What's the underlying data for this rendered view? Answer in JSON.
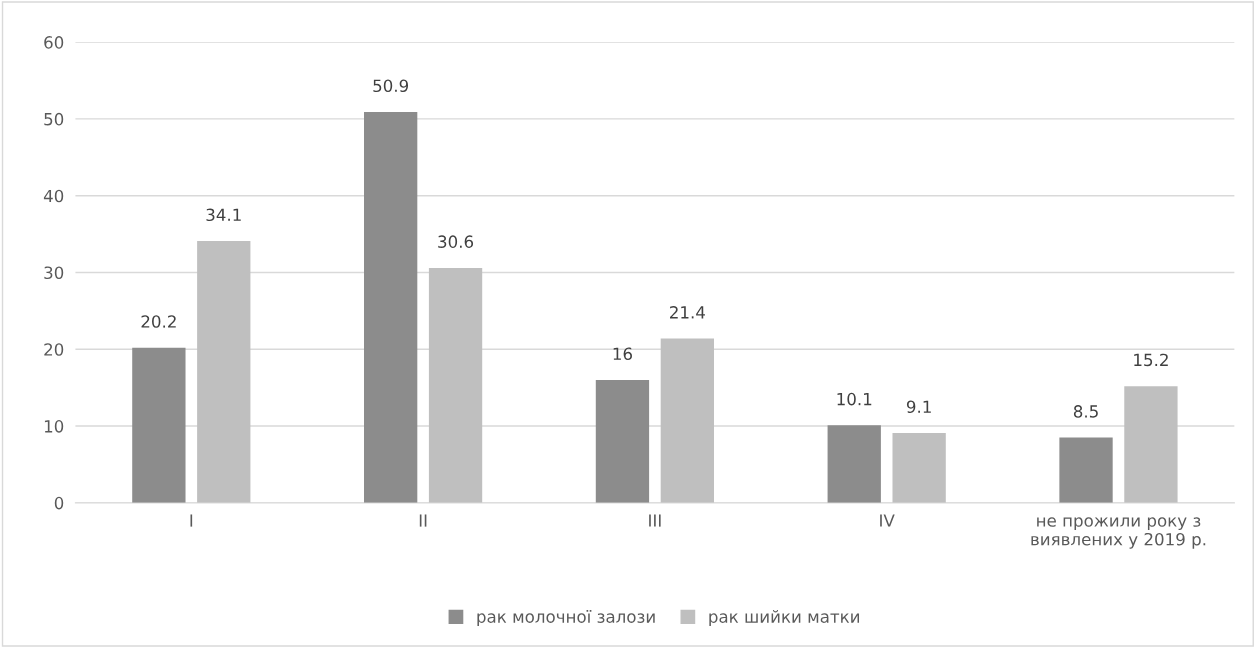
{
  "chart_data": {
    "type": "bar",
    "categories": [
      "I",
      "II",
      "III",
      "IV",
      "не прожили року з\nвиявлених у 2019 р."
    ],
    "series": [
      {
        "name": "рак молочної залози",
        "color": "#8c8c8c",
        "values": [
          20.2,
          50.9,
          16,
          10.1,
          8.5
        ]
      },
      {
        "name": "рак шийки матки",
        "color": "#bfbfbf",
        "values": [
          34.1,
          30.6,
          21.4,
          9.1,
          15.2
        ]
      }
    ],
    "ylim": [
      0,
      60
    ],
    "yticks": [
      0,
      10,
      20,
      30,
      40,
      50,
      60
    ],
    "grid": "y",
    "legend": "bottom",
    "data_labels": true
  }
}
